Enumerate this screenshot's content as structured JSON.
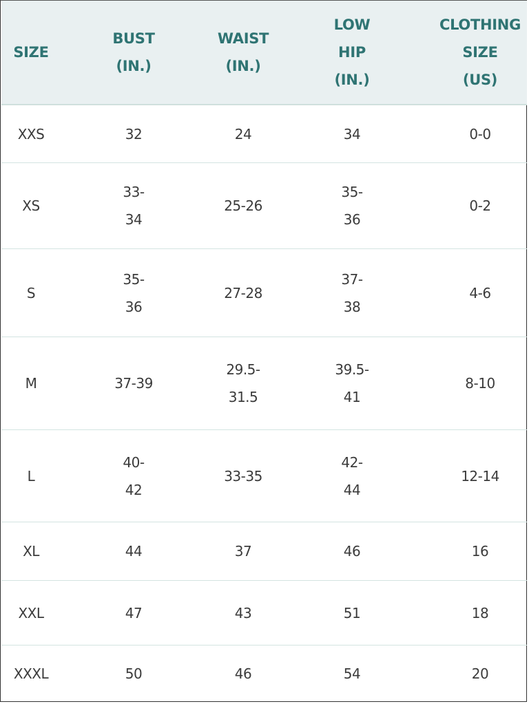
{
  "colors": {
    "header_bg": "#e9f0f1",
    "header_text": "#2f7473",
    "body_text": "#3b3b3b",
    "row_border": "#d3e4e1"
  },
  "headers": [
    "SIZE",
    "BUST\n(IN.)",
    "WAIST\n(IN.)",
    "LOW\nHIP\n(IN.)",
    "CLOTHING\nSIZE\n(US)"
  ],
  "rows": [
    [
      "XXS",
      "32",
      "24",
      "34",
      "0-0"
    ],
    [
      "XS",
      "33-\n34",
      "25-26",
      "35-\n36",
      "0-2"
    ],
    [
      "S",
      "35-\n36",
      "27-28",
      "37-\n38",
      "4-6"
    ],
    [
      "M",
      "37-39",
      "29.5-\n31.5",
      "39.5-\n41",
      "8-10"
    ],
    [
      "L",
      "40-\n42",
      "33-35",
      "42-\n44",
      "12-14"
    ],
    [
      "XL",
      "44",
      "37",
      "46",
      "16"
    ],
    [
      "XXL",
      "47",
      "43",
      "51",
      "18"
    ],
    [
      "XXXL",
      "50",
      "46",
      "54",
      "20"
    ]
  ]
}
